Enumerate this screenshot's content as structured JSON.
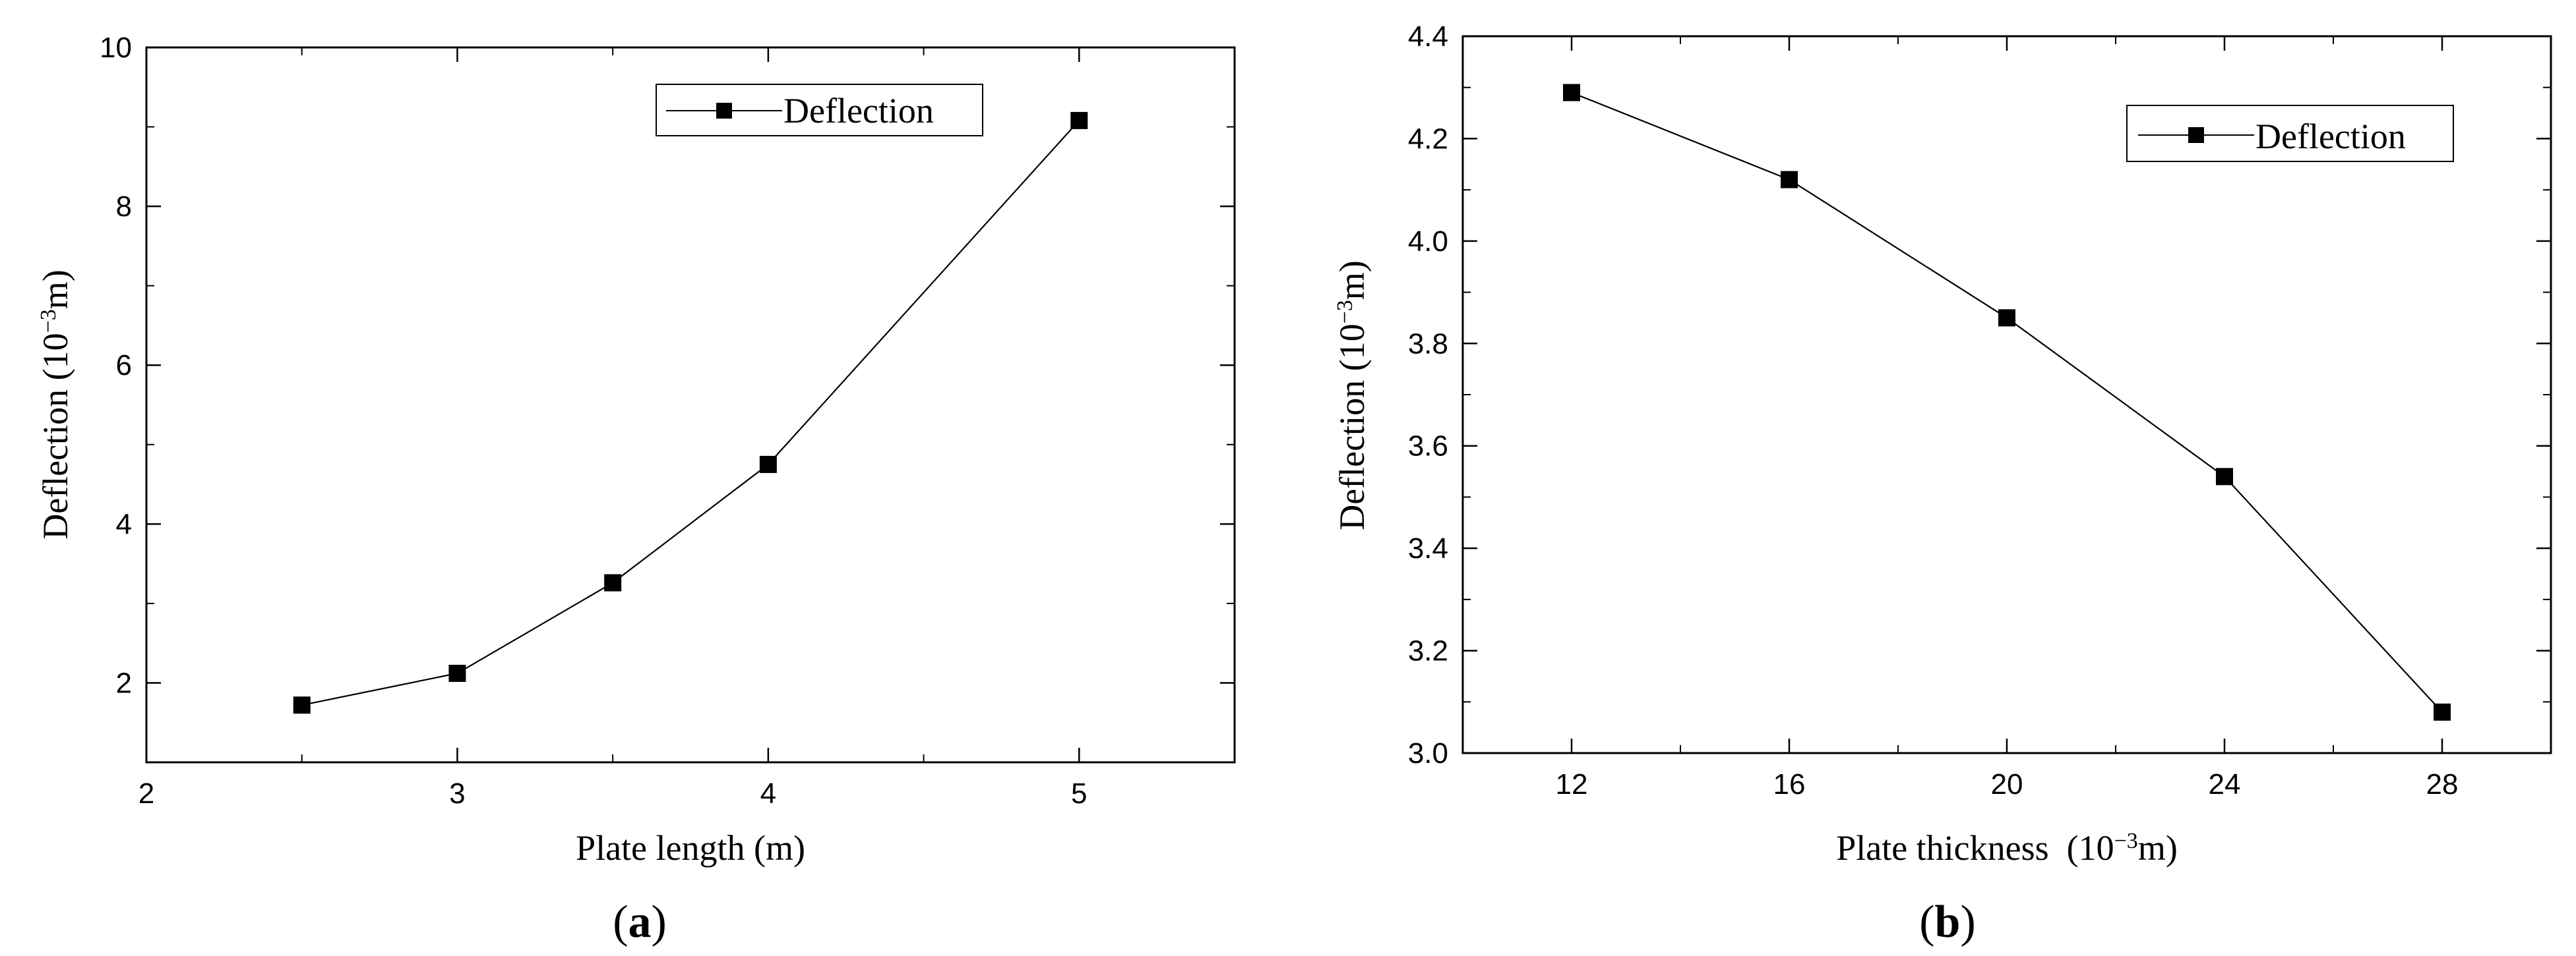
{
  "chart_data": [
    {
      "type": "line",
      "panel_label": {
        "open": "(",
        "letter": "a",
        "close": ")"
      },
      "xlabel": "Plate length (m)",
      "ylabel": {
        "main": "Deflection (10",
        "exp": "−3",
        "unit": "m)"
      },
      "xlim": [
        2,
        5.5
      ],
      "ylim": [
        1,
        10
      ],
      "xticks": [
        2,
        3,
        4,
        5
      ],
      "xtick_labels": [
        "2",
        "3",
        "4",
        "5"
      ],
      "xminor": [
        2.5,
        3.5,
        4.5,
        5.5
      ],
      "yticks": [
        2,
        4,
        6,
        8,
        10
      ],
      "ytick_labels": [
        "2",
        "4",
        "6",
        "8",
        "10"
      ],
      "yminor": [
        1,
        3,
        5,
        7,
        9
      ],
      "legend_position": "top-right",
      "series": [
        {
          "name": "Deflection",
          "x": [
            2.5,
            3,
            3.5,
            4,
            5
          ],
          "y": [
            1.72,
            2.12,
            3.26,
            4.75,
            9.08
          ]
        }
      ]
    },
    {
      "type": "line",
      "panel_label": {
        "open": "(",
        "letter": "b",
        "close": ")"
      },
      "xlabel": "Plate thickness  (10−3m)",
      "xlabel_parts": {
        "main": "Plate thickness  (10",
        "exp": "−3",
        "unit": "m)"
      },
      "ylabel": {
        "main": "Deflection (10",
        "exp": "−3",
        "unit": "m)"
      },
      "xlim": [
        10,
        30
      ],
      "ylim": [
        3.0,
        4.4
      ],
      "xticks": [
        12,
        16,
        20,
        24,
        28
      ],
      "xtick_labels": [
        "12",
        "16",
        "20",
        "24",
        "28"
      ],
      "xminor": [
        10,
        14,
        18,
        22,
        26,
        30
      ],
      "yticks": [
        3.0,
        3.2,
        3.4,
        3.6,
        3.8,
        4.0,
        4.2,
        4.4
      ],
      "ytick_labels": [
        "3.0",
        "3.2",
        "3.4",
        "3.6",
        "3.8",
        "4.0",
        "4.2",
        "4.4"
      ],
      "yminor": [
        3.1,
        3.3,
        3.5,
        3.7,
        3.9,
        4.1,
        4.3
      ],
      "legend_position": "top-right",
      "series": [
        {
          "name": "Deflection",
          "x": [
            12,
            16,
            20,
            24,
            28
          ],
          "y": [
            4.29,
            4.12,
            3.85,
            3.54,
            3.08
          ]
        }
      ]
    }
  ]
}
